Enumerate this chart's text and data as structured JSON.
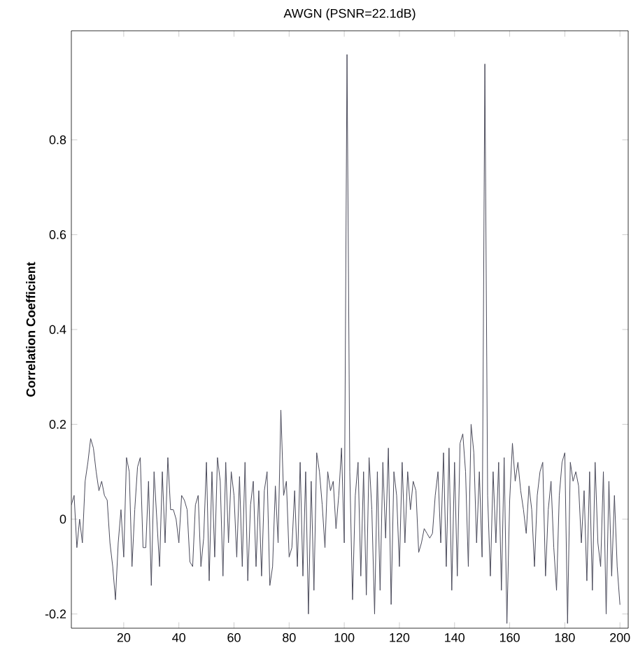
{
  "chart_data": {
    "type": "line",
    "title": "AWGN (PSNR=22.1dB)",
    "ylabel": "Correlation Coefficient",
    "x": [
      1,
      2,
      3,
      4,
      5,
      6,
      7,
      8,
      9,
      10,
      11,
      12,
      13,
      14,
      15,
      16,
      17,
      18,
      19,
      20,
      21,
      22,
      23,
      24,
      25,
      26,
      27,
      28,
      29,
      30,
      31,
      32,
      33,
      34,
      35,
      36,
      37,
      38,
      39,
      40,
      41,
      42,
      43,
      44,
      45,
      46,
      47,
      48,
      49,
      50,
      51,
      52,
      53,
      54,
      55,
      56,
      57,
      58,
      59,
      60,
      61,
      62,
      63,
      64,
      65,
      66,
      67,
      68,
      69,
      70,
      71,
      72,
      73,
      74,
      75,
      76,
      77,
      78,
      79,
      80,
      81,
      82,
      83,
      84,
      85,
      86,
      87,
      88,
      89,
      90,
      91,
      92,
      93,
      94,
      95,
      96,
      97,
      98,
      99,
      100,
      101,
      102,
      103,
      104,
      105,
      106,
      107,
      108,
      109,
      110,
      111,
      112,
      113,
      114,
      115,
      116,
      117,
      118,
      119,
      120,
      121,
      122,
      123,
      124,
      125,
      126,
      127,
      128,
      129,
      130,
      131,
      132,
      133,
      134,
      135,
      136,
      137,
      138,
      139,
      140,
      141,
      142,
      143,
      144,
      145,
      146,
      147,
      148,
      149,
      150,
      151,
      152,
      153,
      154,
      155,
      156,
      157,
      158,
      159,
      160,
      161,
      162,
      163,
      164,
      165,
      166,
      167,
      168,
      169,
      170,
      171,
      172,
      173,
      174,
      175,
      176,
      177,
      178,
      179,
      180,
      181,
      182,
      183,
      184,
      185,
      186,
      187,
      188,
      189,
      190,
      191,
      192,
      193,
      194,
      195,
      196,
      197,
      198,
      199,
      200
    ],
    "series": [
      {
        "color": "#4a4a5a",
        "values": [
          0.03,
          0.05,
          -0.06,
          0.0,
          -0.05,
          0.08,
          0.12,
          0.17,
          0.15,
          0.1,
          0.06,
          0.08,
          0.05,
          0.04,
          -0.05,
          -0.1,
          -0.17,
          -0.05,
          0.02,
          -0.08,
          0.13,
          0.1,
          -0.1,
          0.02,
          0.11,
          0.13,
          -0.06,
          -0.06,
          0.08,
          -0.14,
          0.1,
          0.0,
          -0.1,
          0.1,
          -0.05,
          0.13,
          0.02,
          0.02,
          0.0,
          -0.05,
          0.05,
          0.04,
          0.02,
          -0.09,
          -0.1,
          0.03,
          0.05,
          -0.1,
          -0.04,
          0.12,
          -0.13,
          0.1,
          -0.08,
          0.13,
          0.08,
          -0.12,
          0.12,
          -0.05,
          0.1,
          0.05,
          -0.08,
          0.09,
          -0.1,
          0.12,
          -0.13,
          0.03,
          0.08,
          -0.1,
          0.06,
          -0.12,
          0.06,
          0.1,
          -0.14,
          -0.1,
          0.07,
          -0.05,
          0.23,
          0.05,
          0.08,
          -0.08,
          -0.06,
          0.06,
          -0.1,
          0.12,
          -0.12,
          0.1,
          -0.2,
          0.08,
          -0.15,
          0.14,
          0.1,
          0.03,
          -0.06,
          0.1,
          0.06,
          0.08,
          -0.02,
          0.05,
          0.15,
          -0.05,
          0.98,
          0.1,
          -0.17,
          0.05,
          0.12,
          -0.12,
          0.1,
          -0.16,
          0.13,
          0.02,
          -0.2,
          0.1,
          -0.15,
          0.12,
          -0.04,
          0.15,
          -0.18,
          0.1,
          0.05,
          -0.1,
          0.12,
          -0.05,
          0.1,
          0.02,
          0.08,
          0.06,
          -0.07,
          -0.05,
          -0.02,
          -0.03,
          -0.04,
          -0.03,
          0.05,
          0.1,
          -0.05,
          0.14,
          -0.1,
          0.15,
          -0.15,
          0.12,
          -0.12,
          0.16,
          0.18,
          0.1,
          -0.1,
          0.2,
          0.14,
          -0.05,
          0.1,
          -0.08,
          0.96,
          0.05,
          -0.12,
          0.1,
          -0.05,
          0.12,
          -0.15,
          0.13,
          -0.22,
          0.04,
          0.16,
          0.08,
          0.12,
          0.06,
          0.02,
          -0.03,
          0.07,
          0.02,
          -0.1,
          0.05,
          0.1,
          0.12,
          -0.12,
          0.02,
          0.08,
          -0.06,
          -0.15,
          0.05,
          0.12,
          0.14,
          -0.22,
          0.12,
          0.08,
          0.1,
          0.07,
          -0.05,
          0.06,
          -0.13,
          0.1,
          -0.15,
          0.12,
          -0.05,
          -0.1,
          0.1,
          -0.2,
          0.08,
          -0.12,
          0.05,
          -0.1,
          -0.18
        ]
      }
    ],
    "xlim": [
      1,
      203
    ],
    "ylim": [
      -0.23,
      1.03
    ],
    "xticks": [
      20,
      40,
      60,
      80,
      100,
      120,
      140,
      160,
      180,
      200
    ],
    "yticks": [
      -0.2,
      0,
      0.2,
      0.4,
      0.6,
      0.8
    ],
    "grid": false,
    "marker": "none",
    "line_style": "solid"
  }
}
